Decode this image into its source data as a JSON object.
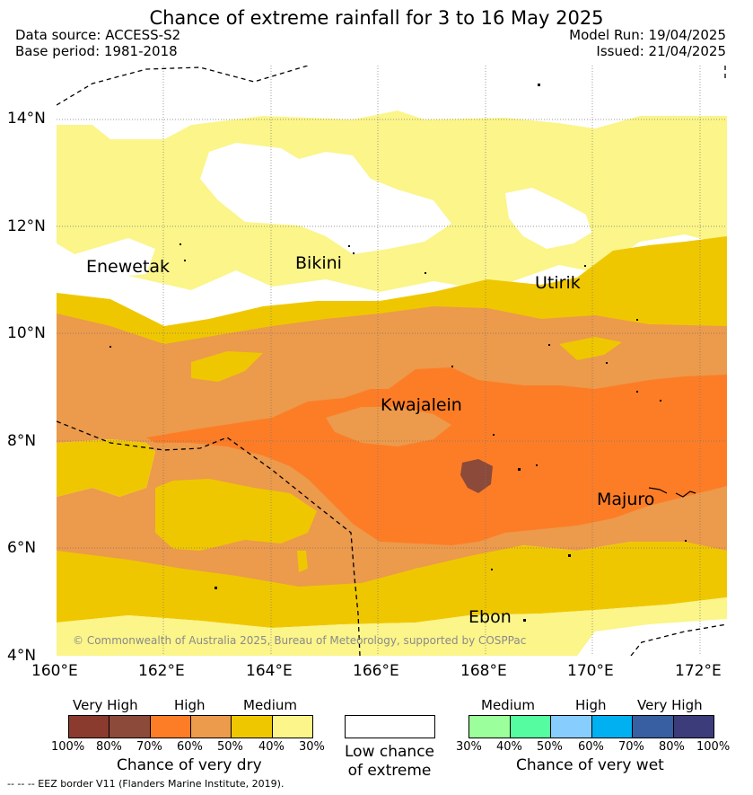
{
  "title": "Chance of extreme rainfall for 3 to 16 May 2025",
  "meta": {
    "data_source": "Data source: ACCESS-S2",
    "base_period": "Base period: 1981-2018",
    "model_run": "Model Run: 19/04/2025",
    "issued": "Issued: 21/04/2025"
  },
  "axes": {
    "y_ticks": [
      "4°N",
      "6°N",
      "8°N",
      "10°N",
      "12°N",
      "14°N"
    ],
    "x_ticks": [
      "160°E",
      "162°E",
      "164°E",
      "166°E",
      "168°E",
      "170°E",
      "172°E"
    ]
  },
  "places": [
    {
      "name": "Enewetak",
      "lon": 161.3,
      "lat": 11.1
    },
    {
      "name": "Bikini",
      "lon": 165.4,
      "lat": 11.4
    },
    {
      "name": "Utirik",
      "lon": 169.7,
      "lat": 10.8
    },
    {
      "name": "Kwajalein",
      "lon": 167.7,
      "lat": 8.7
    },
    {
      "name": "Majuro",
      "lon": 171.2,
      "lat": 6.9
    },
    {
      "name": "Ebon",
      "lon": 168.6,
      "lat": 4.6
    }
  ],
  "copyright": "© Commonwealth of Australia 2025, Bureau of Meteorology, supported by COSPPac",
  "legend_dry": {
    "headers": [
      "Very High",
      "High",
      "Medium"
    ],
    "colors": [
      "#8b3a2e",
      "#8b4a3a",
      "#fd7d27",
      "#ec9a4b",
      "#efc700",
      "#fbf58a"
    ],
    "ticks": [
      "100%",
      "80%",
      "70%",
      "60%",
      "50%",
      "40%",
      "30%"
    ],
    "title": "Chance of very dry"
  },
  "legend_low": {
    "label_line1": "Low chance",
    "label_line2": "of extreme"
  },
  "legend_wet": {
    "headers": [
      "Medium",
      "High",
      "Very High"
    ],
    "colors": [
      "#9bff9b",
      "#55fca0",
      "#87cdfd",
      "#00b0f0",
      "#375fa1",
      "#3c3c7a"
    ],
    "ticks": [
      "30%",
      "40%",
      "50%",
      "60%",
      "70%",
      "80%",
      "100%"
    ],
    "title": "Chance of very wet"
  },
  "eez_note": "--  --  -- EEZ border V11 (Flanders Marine Institute, 2019)."
}
